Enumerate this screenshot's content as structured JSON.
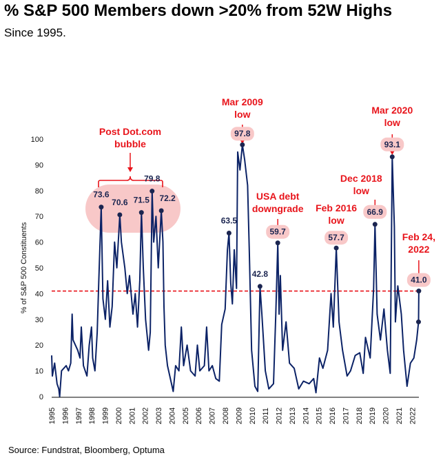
{
  "header": {
    "title": "% S&P 500 Members down >20% from 52W Highs",
    "subtitle": "Since 1995."
  },
  "footer": {
    "source": "Source: Fundstrat, Bloomberg, Optuma"
  },
  "chart_data": {
    "type": "line",
    "title": "% S&P 500 Members down >20% from 52W Highs",
    "subtitle": "Since 1995.",
    "xlabel": "",
    "ylabel": "% of S&P 500 Constituents",
    "xlim": [
      1995,
      2022.6
    ],
    "ylim": [
      0,
      100
    ],
    "x_ticks": [
      "1995",
      "1996",
      "1997",
      "1998",
      "1999",
      "2000",
      "2001",
      "2002",
      "2003",
      "2004",
      "2005",
      "2006",
      "2007",
      "2008",
      "2009",
      "2010",
      "2011",
      "2012",
      "2013",
      "2014",
      "2015",
      "2016",
      "2017",
      "2018",
      "2019",
      "2020",
      "2021",
      "2022"
    ],
    "y_ticks": [
      0,
      10,
      20,
      30,
      40,
      50,
      60,
      70,
      80,
      90,
      100
    ],
    "grid": false,
    "colors": {
      "line": "#0b2266",
      "reference": "#e8141b",
      "annotation": "#e8141b",
      "highlight": "#f8c8c8"
    },
    "reference_line": {
      "value": 41.0,
      "style": "dashed"
    },
    "series": [
      {
        "points": [
          [
            1995.0,
            16
          ],
          [
            1995.05,
            8
          ],
          [
            1995.22,
            13
          ],
          [
            1995.4,
            5
          ],
          [
            1995.53,
            3
          ],
          [
            1995.6,
            0
          ],
          [
            1995.74,
            10
          ],
          [
            1996.09,
            12
          ],
          [
            1996.26,
            10
          ],
          [
            1996.43,
            13
          ],
          [
            1996.53,
            32
          ],
          [
            1996.6,
            22
          ],
          [
            1996.95,
            18
          ],
          [
            1997.12,
            15
          ],
          [
            1997.22,
            27
          ],
          [
            1997.38,
            12
          ],
          [
            1997.64,
            8
          ],
          [
            1997.81,
            20
          ],
          [
            1997.98,
            27
          ],
          [
            1998.07,
            15
          ],
          [
            1998.24,
            10
          ],
          [
            1998.41,
            25
          ],
          [
            1998.53,
            45
          ],
          [
            1998.71,
            73.6
          ],
          [
            1998.84,
            38
          ],
          [
            1999.02,
            30
          ],
          [
            1999.19,
            45
          ],
          [
            1999.36,
            27
          ],
          [
            1999.53,
            35
          ],
          [
            1999.71,
            60
          ],
          [
            1999.88,
            50
          ],
          [
            2000.1,
            70.6
          ],
          [
            2000.22,
            60
          ],
          [
            2000.48,
            50
          ],
          [
            2000.66,
            40
          ],
          [
            2000.83,
            47
          ],
          [
            2001.09,
            32
          ],
          [
            2001.26,
            40
          ],
          [
            2001.43,
            27
          ],
          [
            2001.6,
            45
          ],
          [
            2001.72,
            71.5
          ],
          [
            2001.86,
            50
          ],
          [
            2002.03,
            30
          ],
          [
            2002.26,
            18
          ],
          [
            2002.38,
            25
          ],
          [
            2002.52,
            79.8
          ],
          [
            2002.64,
            60
          ],
          [
            2002.81,
            70
          ],
          [
            2002.98,
            50
          ],
          [
            2003.21,
            72.2
          ],
          [
            2003.33,
            60
          ],
          [
            2003.41,
            35
          ],
          [
            2003.5,
            20
          ],
          [
            2003.67,
            12
          ],
          [
            2003.93,
            6
          ],
          [
            2004.1,
            2
          ],
          [
            2004.28,
            12
          ],
          [
            2004.53,
            10
          ],
          [
            2004.71,
            27
          ],
          [
            2004.88,
            12
          ],
          [
            2005.14,
            20
          ],
          [
            2005.4,
            10
          ],
          [
            2005.74,
            8
          ],
          [
            2005.91,
            20
          ],
          [
            2006.09,
            10
          ],
          [
            2006.43,
            12
          ],
          [
            2006.6,
            27
          ],
          [
            2006.78,
            10
          ],
          [
            2007.03,
            12
          ],
          [
            2007.29,
            7
          ],
          [
            2007.55,
            6
          ],
          [
            2007.73,
            28
          ],
          [
            2007.99,
            34
          ],
          [
            2008.16,
            57
          ],
          [
            2008.28,
            63.5
          ],
          [
            2008.41,
            44
          ],
          [
            2008.53,
            36
          ],
          [
            2008.67,
            57
          ],
          [
            2008.84,
            42
          ],
          [
            2008.93,
            95
          ],
          [
            2009.1,
            88
          ],
          [
            2009.28,
            97.8
          ],
          [
            2009.45,
            92
          ],
          [
            2009.67,
            82
          ],
          [
            2009.8,
            56
          ],
          [
            2009.97,
            18
          ],
          [
            2010.22,
            4
          ],
          [
            2010.43,
            2
          ],
          [
            2010.6,
            42.8
          ],
          [
            2010.74,
            32
          ],
          [
            2011.0,
            10
          ],
          [
            2011.26,
            3
          ],
          [
            2011.61,
            5
          ],
          [
            2011.78,
            32
          ],
          [
            2011.93,
            59.7
          ],
          [
            2012.03,
            32
          ],
          [
            2012.12,
            47
          ],
          [
            2012.29,
            18
          ],
          [
            2012.55,
            29
          ],
          [
            2012.81,
            13
          ],
          [
            2013.16,
            11
          ],
          [
            2013.5,
            3
          ],
          [
            2013.85,
            6
          ],
          [
            2014.28,
            5
          ],
          [
            2014.62,
            7
          ],
          [
            2014.79,
            1.5
          ],
          [
            2015.05,
            15
          ],
          [
            2015.31,
            11
          ],
          [
            2015.66,
            18
          ],
          [
            2015.92,
            40
          ],
          [
            2016.09,
            27
          ],
          [
            2016.31,
            57.7
          ],
          [
            2016.52,
            29
          ],
          [
            2016.78,
            18
          ],
          [
            2017.12,
            8
          ],
          [
            2017.38,
            10
          ],
          [
            2017.73,
            16
          ],
          [
            2018.07,
            17
          ],
          [
            2018.33,
            9
          ],
          [
            2018.5,
            23
          ],
          [
            2018.85,
            15
          ],
          [
            2019.11,
            42
          ],
          [
            2019.21,
            66.9
          ],
          [
            2019.37,
            32
          ],
          [
            2019.62,
            22
          ],
          [
            2019.88,
            34
          ],
          [
            2020.14,
            18
          ],
          [
            2020.35,
            9
          ],
          [
            2020.5,
            93.1
          ],
          [
            2020.66,
            66
          ],
          [
            2020.74,
            29
          ],
          [
            2020.92,
            43
          ],
          [
            2021.18,
            32
          ],
          [
            2021.35,
            18
          ],
          [
            2021.61,
            4
          ],
          [
            2021.86,
            13
          ],
          [
            2022.12,
            15
          ],
          [
            2022.33,
            22
          ],
          [
            2022.47,
            29
          ],
          [
            2022.49,
            41.0
          ]
        ]
      }
    ],
    "annotations": [
      {
        "text": [
          "Post Dot.com",
          "bubble"
        ],
        "points": [
          [
            1998.71,
            73.6
          ],
          [
            2000.1,
            70.6
          ],
          [
            2001.72,
            71.5
          ],
          [
            2002.52,
            79.8
          ],
          [
            2003.21,
            72.2
          ]
        ],
        "labels": [
          "73.6",
          "70.6",
          "71.5",
          "79.8",
          "72.2"
        ]
      },
      {
        "text": [],
        "points": [
          [
            2008.28,
            63.5
          ]
        ],
        "labels": [
          "63.5"
        ]
      },
      {
        "text": [
          "Mar 2009",
          "low"
        ],
        "points": [
          [
            2009.28,
            97.8
          ]
        ],
        "labels": [
          "97.8"
        ]
      },
      {
        "text": [],
        "points": [
          [
            2010.6,
            42.8
          ]
        ],
        "labels": [
          "42.8"
        ]
      },
      {
        "text": [
          "USA debt",
          "downgrade"
        ],
        "points": [
          [
            2011.93,
            59.7
          ]
        ],
        "labels": [
          "59.7"
        ]
      },
      {
        "text": [
          "Feb 2016",
          "low"
        ],
        "points": [
          [
            2016.31,
            57.7
          ]
        ],
        "labels": [
          "57.7"
        ]
      },
      {
        "text": [
          "Dec 2018",
          "low"
        ],
        "points": [
          [
            2019.21,
            66.9
          ]
        ],
        "labels": [
          "66.9"
        ]
      },
      {
        "text": [
          "Mar 2020",
          "low"
        ],
        "points": [
          [
            2020.5,
            93.1
          ]
        ],
        "labels": [
          "93.1"
        ]
      },
      {
        "text": [
          "Feb 24,",
          "2022"
        ],
        "points": [
          [
            2022.49,
            41.0
          ],
          [
            2022.47,
            29
          ]
        ],
        "labels": [
          "41.0",
          ""
        ]
      }
    ]
  }
}
